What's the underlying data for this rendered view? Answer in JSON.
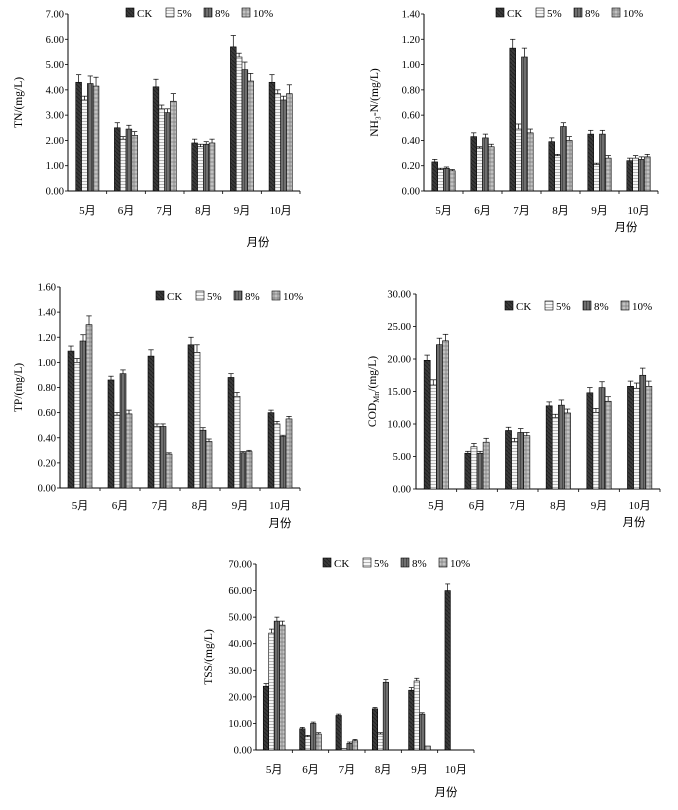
{
  "page": {
    "month_unit_label": "月份"
  },
  "legend": {
    "series_names": [
      "CK",
      "5%",
      "8%",
      "10%"
    ],
    "series_fills": [
      "#3a3a3a",
      "#f2f2f2",
      "#777777",
      "#bdbdbd"
    ]
  },
  "chart_data": [
    {
      "id": "tn",
      "type": "bar",
      "ylabel": "TN/(mg/L)",
      "xlabel": "月份",
      "categories": [
        "5月",
        "6月",
        "7月",
        "8月",
        "9月",
        "10月"
      ],
      "ylim": [
        0,
        7
      ],
      "ytick_step": 1,
      "ytick_decimals": 2,
      "series": [
        {
          "name": "CK",
          "values": [
            4.3,
            2.5,
            4.12,
            1.9,
            5.7,
            4.3
          ]
        },
        {
          "name": "5%",
          "values": [
            3.6,
            2.05,
            3.25,
            1.75,
            5.3,
            3.85
          ]
        },
        {
          "name": "8%",
          "values": [
            4.25,
            2.45,
            3.1,
            1.85,
            4.8,
            3.6
          ]
        },
        {
          "name": "10%",
          "values": [
            4.15,
            2.2,
            3.55,
            1.9,
            4.35,
            3.85
          ]
        }
      ],
      "errors": [
        [
          0.3,
          0.2,
          0.3,
          0.15,
          0.45,
          0.3
        ],
        [
          0.15,
          0.1,
          0.15,
          0.1,
          0.15,
          0.15
        ],
        [
          0.3,
          0.15,
          0.15,
          0.1,
          0.3,
          0.15
        ],
        [
          0.35,
          0.15,
          0.3,
          0.15,
          0.3,
          0.35
        ]
      ]
    },
    {
      "id": "nh3",
      "type": "bar",
      "ylabel": "NH₃-N/(mg/L)",
      "xlabel": "月份",
      "categories": [
        "5月",
        "6月",
        "7月",
        "8月",
        "9月",
        "10月"
      ],
      "ylim": [
        0,
        1.4
      ],
      "ytick_step": 0.2,
      "ytick_decimals": 2,
      "series": [
        {
          "name": "CK",
          "values": [
            0.23,
            0.43,
            1.13,
            0.39,
            0.45,
            0.24
          ]
        },
        {
          "name": "5%",
          "values": [
            0.17,
            0.34,
            0.49,
            0.28,
            0.21,
            0.26
          ]
        },
        {
          "name": "8%",
          "values": [
            0.18,
            0.42,
            1.06,
            0.51,
            0.45,
            0.25
          ]
        },
        {
          "name": "10%",
          "values": [
            0.16,
            0.35,
            0.46,
            0.4,
            0.26,
            0.27
          ]
        }
      ],
      "errors": [
        [
          0.02,
          0.03,
          0.07,
          0.03,
          0.03,
          0.02
        ],
        [
          0.01,
          0.01,
          0.04,
          0.01,
          0.01,
          0.02
        ],
        [
          0.01,
          0.03,
          0.07,
          0.03,
          0.03,
          0.02
        ],
        [
          0.01,
          0.02,
          0.03,
          0.03,
          0.02,
          0.02
        ]
      ]
    },
    {
      "id": "tp",
      "type": "bar",
      "ylabel": "TP/(mg/L)",
      "xlabel": "月份",
      "categories": [
        "5月",
        "6月",
        "7月",
        "8月",
        "9月",
        "10月"
      ],
      "ylim": [
        0,
        1.6
      ],
      "ytick_step": 0.2,
      "ytick_decimals": 2,
      "series": [
        {
          "name": "CK",
          "values": [
            1.09,
            0.86,
            1.05,
            1.14,
            0.88,
            0.6
          ]
        },
        {
          "name": "5%",
          "values": [
            1.0,
            0.58,
            0.49,
            1.08,
            0.73,
            0.51
          ]
        },
        {
          "name": "8%",
          "values": [
            1.17,
            0.91,
            0.49,
            0.46,
            0.28,
            0.41
          ]
        },
        {
          "name": "10%",
          "values": [
            1.3,
            0.59,
            0.27,
            0.37,
            0.29,
            0.55
          ]
        }
      ],
      "errors": [
        [
          0.04,
          0.03,
          0.05,
          0.06,
          0.03,
          0.02
        ],
        [
          0.03,
          0.02,
          0.02,
          0.06,
          0.03,
          0.02
        ],
        [
          0.05,
          0.03,
          0.02,
          0.02,
          0.01,
          0.01
        ],
        [
          0.07,
          0.03,
          0.01,
          0.02,
          0.01,
          0.02
        ]
      ]
    },
    {
      "id": "cod",
      "type": "bar",
      "ylabel": "COD",
      "ylabel_subscript": "Mn",
      "ylabel_suffix": "/(mg/L)",
      "xlabel": "月份",
      "categories": [
        "5月",
        "6月",
        "7月",
        "8月",
        "9月",
        "10月"
      ],
      "ylim": [
        0,
        30
      ],
      "ytick_step": 5,
      "ytick_decimals": 2,
      "series": [
        {
          "name": "CK",
          "values": [
            19.8,
            5.5,
            9.0,
            12.8,
            14.8,
            15.8
          ]
        },
        {
          "name": "5%",
          "values": [
            16.0,
            6.5,
            7.3,
            11.0,
            11.8,
            15.5
          ]
        },
        {
          "name": "8%",
          "values": [
            22.2,
            5.5,
            8.7,
            12.9,
            15.6,
            17.5
          ]
        },
        {
          "name": "10%",
          "values": [
            22.8,
            7.2,
            8.2,
            11.7,
            13.5,
            15.8
          ]
        }
      ],
      "errors": [
        [
          0.8,
          0.3,
          0.5,
          0.6,
          0.8,
          0.8
        ],
        [
          0.8,
          0.5,
          0.5,
          0.5,
          0.6,
          0.8
        ],
        [
          1.0,
          0.3,
          0.6,
          0.8,
          0.9,
          1.1
        ],
        [
          1.0,
          0.6,
          0.5,
          0.6,
          0.7,
          0.8
        ]
      ]
    },
    {
      "id": "tss",
      "type": "bar",
      "ylabel": "TSS/(mg/L)",
      "xlabel": "月份",
      "categories": [
        "5月",
        "6月",
        "7月",
        "8月",
        "9月",
        "10月"
      ],
      "ylim": [
        0,
        70
      ],
      "ytick_step": 10,
      "ytick_decimals": 2,
      "series": [
        {
          "name": "CK",
          "values": [
            24.0,
            8.0,
            13.0,
            15.5,
            22.5,
            60.0
          ]
        },
        {
          "name": "5%",
          "values": [
            44.0,
            5.0,
            0.5,
            6.0,
            26.0,
            0
          ]
        },
        {
          "name": "8%",
          "values": [
            48.5,
            10.0,
            2.5,
            25.5,
            13.5,
            0
          ]
        },
        {
          "name": "10%",
          "values": [
            47.0,
            6.0,
            3.5,
            0,
            1.5,
            0
          ]
        }
      ],
      "errors": [
        [
          1.0,
          0.5,
          0.5,
          0.5,
          1.0,
          2.5
        ],
        [
          1.5,
          0.5,
          0,
          0.5,
          1.0,
          0
        ],
        [
          1.5,
          0.5,
          0.5,
          1.0,
          0.5,
          0
        ],
        [
          1.5,
          0.5,
          0.5,
          0,
          0,
          0
        ]
      ]
    }
  ]
}
